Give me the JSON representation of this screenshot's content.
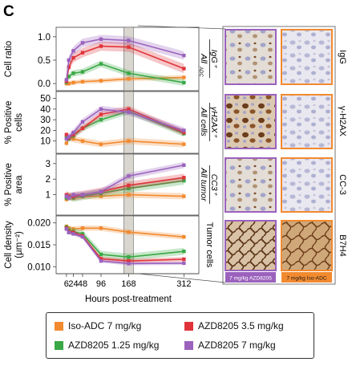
{
  "figure": {
    "panel_letter": "C",
    "x_axis_label": "Hours post-treatment",
    "x_ticks": [
      6,
      24,
      48,
      96,
      168,
      312
    ],
    "x_tick_labels": [
      "6",
      "24",
      "48",
      "96",
      "168",
      "312"
    ],
    "highlight_time": 168
  },
  "rows": [
    {
      "ylabel_lines": [
        "Cell ratio"
      ],
      "right_label_top": "IgG⁺",
      "right_label_bottom": "All",
      "right_label_sub": "ADC",
      "image_label": "IgG",
      "ylim": [
        -0.05,
        1.1
      ],
      "yticks": [
        0.0,
        0.5,
        1.0
      ],
      "ytick_labels": [
        "0.0",
        "0.5",
        "1.0"
      ]
    },
    {
      "ylabel_lines": [
        "% Positive",
        "cells"
      ],
      "right_label_top": "γH2AX⁺",
      "right_label_bottom": "All cells",
      "image_label": "γ-H2AX",
      "ylim": [
        3,
        52
      ],
      "yticks": [
        10,
        20,
        30,
        40,
        50
      ],
      "ytick_labels": [
        "10",
        "20",
        "30",
        "40",
        "50"
      ]
    },
    {
      "ylabel_lines": [
        "% Positive",
        "area"
      ],
      "right_label_top": "CC3⁺",
      "right_label_bottom": "All tumor",
      "image_label": "CC-3",
      "ylim": [
        0,
        3.3
      ],
      "yticks": [
        1,
        2,
        3
      ],
      "ytick_labels": [
        "1",
        "2",
        "3"
      ]
    },
    {
      "ylabel_lines": [
        "Cell density",
        "(μm⁻²)"
      ],
      "right_label_top": "Tumor cells",
      "image_label": "B7H4",
      "ylim": [
        0.0095,
        0.0205
      ],
      "yticks": [
        0.01,
        0.015,
        0.02
      ],
      "ytick_labels": [
        "0.010",
        "0.015",
        "0.020"
      ]
    }
  ],
  "image_captions": [
    "7 mg/kg AZD8205",
    "7 mg/kg Iso-ADC"
  ],
  "legend": [
    {
      "label": "Iso-ADC 7 mg/kg",
      "color": "#f28a30"
    },
    {
      "label": "AZD8205 3.5 mg/kg",
      "color": "#e0343a"
    },
    {
      "label": "AZD8205 1.25 mg/kg",
      "color": "#3aa845"
    },
    {
      "label": "AZD8205 7 mg/kg",
      "color": "#9b62bd"
    }
  ],
  "chart_data": [
    {
      "type": "line",
      "x": [
        6,
        12,
        24,
        48,
        96,
        168,
        312
      ],
      "ylabel": "Cell ratio",
      "ylim": [
        -0.05,
        1.1
      ],
      "series": [
        {
          "name": "Iso-ADC 7 mg/kg",
          "color": "#f28a30",
          "values": [
            0.0,
            0.0,
            0.02,
            0.04,
            0.06,
            0.1,
            0.13
          ],
          "band": 0.05
        },
        {
          "name": "AZD8205 1.25 mg/kg",
          "color": "#3aa845",
          "values": [
            0.03,
            0.15,
            0.22,
            0.25,
            0.42,
            0.22,
            0.02
          ],
          "band": 0.07
        },
        {
          "name": "AZD8205 3.5 mg/kg",
          "color": "#e0343a",
          "values": [
            0.05,
            0.35,
            0.55,
            0.66,
            0.8,
            0.78,
            0.32
          ],
          "band": 0.1
        },
        {
          "name": "AZD8205 7 mg/kg",
          "color": "#9b62bd",
          "values": [
            0.08,
            0.5,
            0.7,
            0.87,
            0.95,
            0.92,
            0.6
          ],
          "band": 0.09
        }
      ]
    },
    {
      "type": "line",
      "x": [
        6,
        12,
        24,
        48,
        96,
        168,
        312
      ],
      "ylabel": "% Positive cells",
      "ylim": [
        3,
        52
      ],
      "series": [
        {
          "name": "Iso-ADC 7 mg/kg",
          "color": "#f28a30",
          "values": [
            8,
            13,
            12,
            10,
            7,
            10,
            7
          ],
          "band": 3
        },
        {
          "name": "AZD8205 1.25 mg/kg",
          "color": "#3aa845",
          "values": [
            13,
            12,
            15,
            22,
            30,
            38,
            17
          ],
          "band": 3
        },
        {
          "name": "AZD8205 3.5 mg/kg",
          "color": "#e0343a",
          "values": [
            16,
            13,
            16,
            22,
            35,
            40,
            18
          ],
          "band": 3
        },
        {
          "name": "AZD8205 7 mg/kg",
          "color": "#9b62bd",
          "values": [
            12,
            14,
            18,
            28,
            40,
            37,
            20
          ],
          "band": 3
        }
      ]
    },
    {
      "type": "line",
      "x": [
        6,
        12,
        24,
        48,
        96,
        168,
        312
      ],
      "ylabel": "% Positive area",
      "ylim": [
        0,
        3.3
      ],
      "series": [
        {
          "name": "Iso-ADC 7 mg/kg",
          "color": "#f28a30",
          "values": [
            0.7,
            0.9,
            0.8,
            0.9,
            0.9,
            1.0,
            0.9
          ],
          "band": 0.2
        },
        {
          "name": "AZD8205 1.25 mg/kg",
          "color": "#3aa845",
          "values": [
            0.8,
            0.9,
            0.8,
            0.9,
            1.1,
            1.4,
            1.9
          ],
          "band": 0.25
        },
        {
          "name": "AZD8205 3.5 mg/kg",
          "color": "#e0343a",
          "values": [
            1.0,
            0.9,
            0.9,
            1.0,
            1.2,
            1.6,
            2.1
          ],
          "band": 0.25
        },
        {
          "name": "AZD8205 7 mg/kg",
          "color": "#9b62bd",
          "values": [
            0.9,
            0.8,
            1.0,
            1.0,
            1.2,
            2.2,
            2.9
          ],
          "band": 0.2
        }
      ]
    },
    {
      "type": "line",
      "x": [
        6,
        12,
        24,
        48,
        96,
        168,
        312
      ],
      "ylabel": "Cell density (μm⁻²)",
      "ylim": [
        0.0095,
        0.0205
      ],
      "series": [
        {
          "name": "Iso-ADC 7 mg/kg",
          "color": "#f28a30",
          "values": [
            0.0192,
            0.0188,
            0.0186,
            0.0188,
            0.0188,
            0.0179,
            0.0168
          ],
          "band": 0.0006
        },
        {
          "name": "AZD8205 1.25 mg/kg",
          "color": "#3aa845",
          "values": [
            0.019,
            0.0183,
            0.018,
            0.0175,
            0.0128,
            0.0122,
            0.0135
          ],
          "band": 0.0008
        },
        {
          "name": "AZD8205 3.5 mg/kg",
          "color": "#e0343a",
          "values": [
            0.0188,
            0.018,
            0.0178,
            0.017,
            0.0118,
            0.0113,
            0.0117
          ],
          "band": 0.0005
        },
        {
          "name": "AZD8205 7 mg/kg",
          "color": "#9b62bd",
          "values": [
            0.0186,
            0.0178,
            0.0175,
            0.0168,
            0.0113,
            0.0107,
            0.0108
          ],
          "band": 0.0004
        }
      ]
    }
  ]
}
